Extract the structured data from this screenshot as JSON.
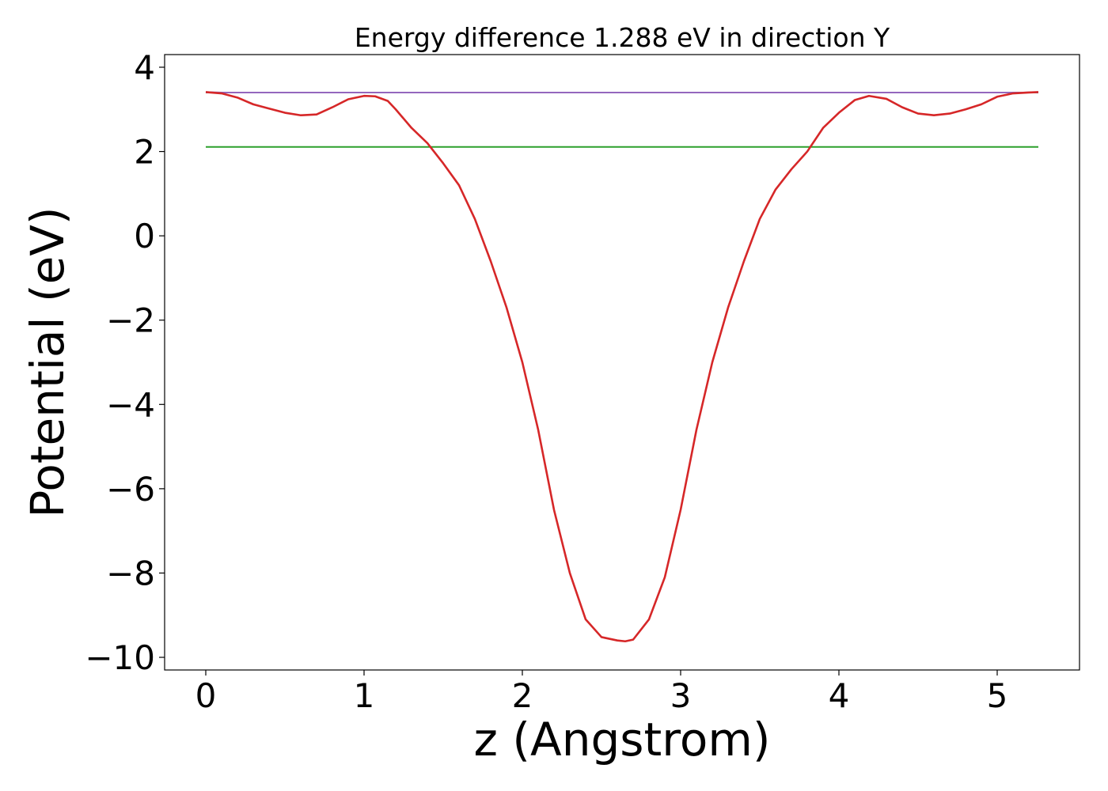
{
  "chart_data": {
    "type": "line",
    "title": "Energy difference 1.288 eV in direction Y",
    "xlabel": "z (Angstrom)",
    "ylabel": "Potential (eV)",
    "xlim": [
      -0.26,
      5.52
    ],
    "ylim": [
      -10.3,
      4.3
    ],
    "x_ticks": [
      0,
      1,
      2,
      3,
      4,
      5
    ],
    "x_tick_labels": [
      "0",
      "1",
      "2",
      "3",
      "4",
      "5"
    ],
    "y_ticks": [
      4,
      2,
      0,
      -2,
      -4,
      -6,
      -8,
      -10
    ],
    "y_tick_labels": [
      "4",
      "2",
      "0",
      "−2",
      "−4",
      "−6",
      "−8",
      "−10"
    ],
    "grid": false,
    "legend": "none",
    "series": [
      {
        "color": "#1f77b4",
        "x": [
          0,
          5.26
        ],
        "y": [
          3.4,
          3.4
        ]
      },
      {
        "color": "#2ca02c",
        "x": [
          0,
          5.26
        ],
        "y": [
          2.11,
          2.11
        ]
      },
      {
        "color": "#9467bd",
        "x": [
          0,
          0.1,
          5.16,
          5.26
        ],
        "y": [
          3.41,
          3.4,
          3.4,
          3.41
        ]
      },
      {
        "color": "#d62728",
        "x": [
          0,
          0.1,
          0.2,
          0.3,
          0.4,
          0.5,
          0.6,
          0.7,
          0.8,
          0.9,
          1.0,
          1.07,
          1.15,
          1.2,
          1.3,
          1.4,
          1.5,
          1.6,
          1.7,
          1.8,
          1.9,
          2.0,
          2.1,
          2.2,
          2.3,
          2.4,
          2.5,
          2.6,
          2.65,
          2.7,
          2.8,
          2.9,
          3.0,
          3.1,
          3.2,
          3.3,
          3.4,
          3.5,
          3.6,
          3.7,
          3.8,
          3.9,
          4.0,
          4.1,
          4.19,
          4.3,
          4.4,
          4.5,
          4.6,
          4.7,
          4.8,
          4.9,
          5.0,
          5.1,
          5.2,
          5.26
        ],
        "y": [
          3.41,
          3.38,
          3.28,
          3.12,
          3.02,
          2.92,
          2.86,
          2.88,
          3.05,
          3.24,
          3.32,
          3.31,
          3.2,
          3.0,
          2.56,
          2.2,
          1.72,
          1.2,
          0.4,
          -0.6,
          -1.7,
          -3.0,
          -4.6,
          -6.5,
          -8.0,
          -9.1,
          -9.52,
          -9.6,
          -9.62,
          -9.58,
          -9.1,
          -8.1,
          -6.5,
          -4.6,
          -3.0,
          -1.7,
          -0.6,
          0.4,
          1.1,
          1.58,
          2.0,
          2.56,
          2.92,
          3.22,
          3.32,
          3.25,
          3.05,
          2.9,
          2.86,
          2.9,
          3.0,
          3.12,
          3.3,
          3.38,
          3.4,
          3.41
        ]
      }
    ]
  }
}
